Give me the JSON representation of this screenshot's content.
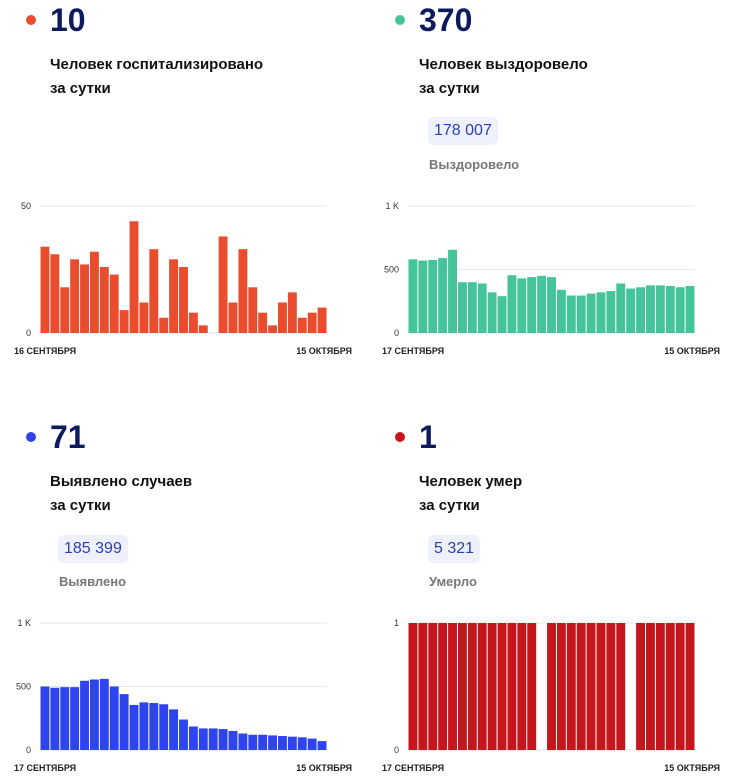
{
  "panels": [
    {
      "color": "#ea4c2e",
      "big_number": "10",
      "label_line1": "Человек госпитализировано",
      "label_line2": "за сутки",
      "total": "",
      "total_label": "",
      "chart_data": {
        "type": "bar",
        "ymax": 50,
        "y_ticks": [
          {
            "value": 0,
            "label": "0"
          },
          {
            "value": 50,
            "label": "50"
          }
        ],
        "x_label_start": "16 СЕНТЯБРЯ",
        "x_label_end": "15 ОКТЯБРЯ",
        "values": [
          34,
          31,
          18,
          29,
          27,
          32,
          26,
          23,
          9,
          44,
          12,
          33,
          6,
          29,
          26,
          8,
          3,
          null,
          38,
          12,
          33,
          18,
          8,
          3,
          12,
          16,
          6,
          8,
          10
        ]
      }
    },
    {
      "color": "#45c39a",
      "big_number": "370",
      "label_line1": "Человек выздоровело",
      "label_line2": "за сутки",
      "total": "178 007",
      "total_label": "Выздоровело",
      "chart_data": {
        "type": "bar",
        "ymax": 1000,
        "y_ticks": [
          {
            "value": 0,
            "label": "0"
          },
          {
            "value": 500,
            "label": "500"
          },
          {
            "value": 1000,
            "label": "1 K"
          }
        ],
        "x_label_start": "17 СЕНТЯБРЯ",
        "x_label_end": "15 ОКТЯБРЯ",
        "values": [
          580,
          570,
          575,
          590,
          655,
          400,
          400,
          390,
          320,
          290,
          455,
          430,
          440,
          450,
          440,
          340,
          295,
          295,
          310,
          320,
          330,
          390,
          350,
          360,
          375,
          375,
          370,
          360,
          370
        ]
      }
    },
    {
      "color": "#2e45ee",
      "big_number": "71",
      "label_line1": "Выявлено случаев",
      "label_line2": "за сутки",
      "total": "185 399",
      "total_label": "Выявлено",
      "chart_data": {
        "type": "bar",
        "ymax": 1000,
        "y_ticks": [
          {
            "value": 0,
            "label": "0"
          },
          {
            "value": 500,
            "label": "500"
          },
          {
            "value": 1000,
            "label": "1 K"
          }
        ],
        "x_label_start": "17 СЕНТЯБРЯ",
        "x_label_end": "15 ОКТЯБРЯ",
        "values": [
          500,
          490,
          495,
          495,
          545,
          555,
          560,
          500,
          440,
          355,
          375,
          370,
          360,
          320,
          240,
          185,
          170,
          170,
          165,
          150,
          130,
          120,
          120,
          115,
          110,
          105,
          100,
          90,
          70
        ]
      }
    },
    {
      "color": "#c4161c",
      "big_number": "1",
      "label_line1": "Человек умер",
      "label_line2": "за сутки",
      "total": "5 321",
      "total_label": "Умерло",
      "chart_data": {
        "type": "bar",
        "ymax": 1,
        "y_ticks": [
          {
            "value": 0,
            "label": "0"
          },
          {
            "value": 1,
            "label": "1"
          }
        ],
        "x_label_start": "17 СЕНТЯБРЯ",
        "x_label_end": "15 ОКТЯБРЯ",
        "values": [
          1,
          1,
          1,
          1,
          1,
          1,
          1,
          1,
          1,
          1,
          1,
          1,
          1,
          null,
          1,
          1,
          1,
          1,
          1,
          1,
          1,
          1,
          null,
          1,
          1,
          1,
          1,
          1,
          1
        ]
      }
    }
  ]
}
